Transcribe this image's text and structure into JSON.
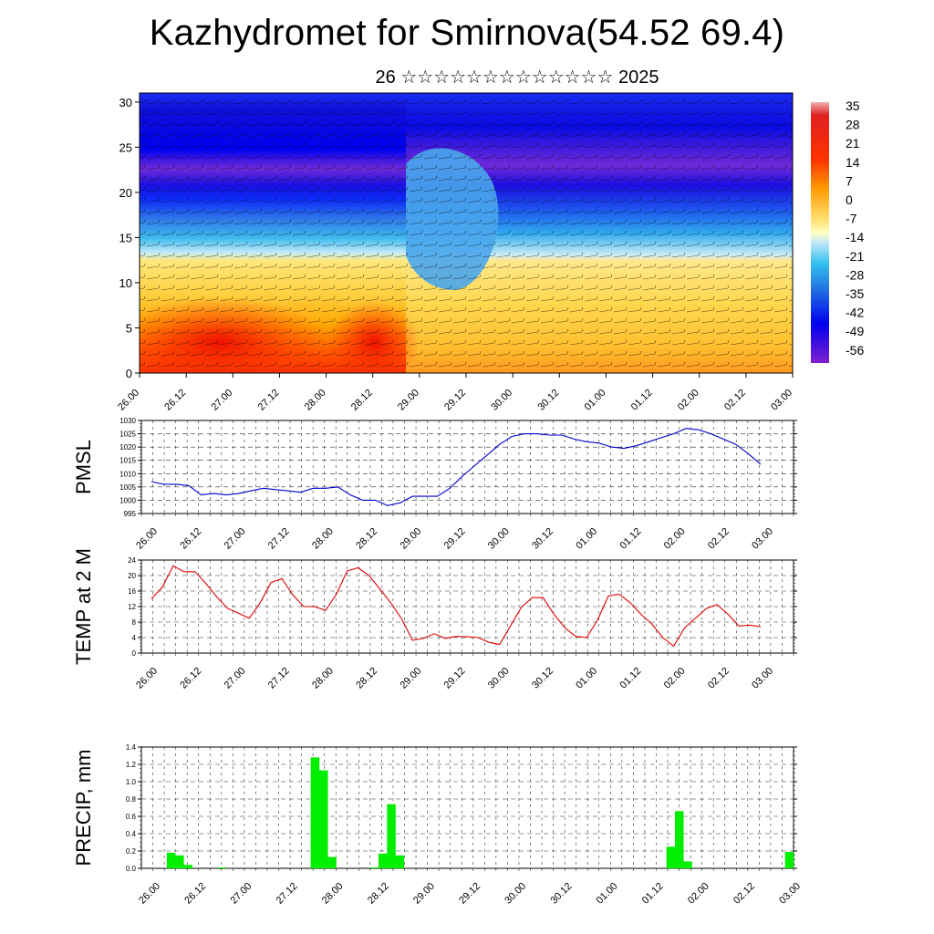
{
  "title": "Kazhydromet for Smirnova(54.52 69.4)",
  "subtitle": "26 ☆☆☆☆☆☆☆☆☆☆☆☆☆ 2025",
  "time_labels": [
    "26.00",
    "26.12",
    "27.00",
    "27.12",
    "28.00",
    "28.12",
    "29.00",
    "29.12",
    "30.00",
    "30.12",
    "01.00",
    "01.12",
    "02.00",
    "02.12",
    "03.00"
  ],
  "colors": {
    "pmsl_line": "#0000cc",
    "temp_line": "#e00000",
    "precip_bar": "#00ee00",
    "grid": "#333333"
  },
  "chart_data": [
    {
      "type": "heatmap",
      "title": "",
      "xlabel": "",
      "ylabel": "",
      "y_ticks": [
        0,
        5,
        10,
        15,
        20,
        25,
        30
      ],
      "ylim": [
        0,
        31
      ],
      "x_ticks": [
        "26.00",
        "26.12",
        "27.00",
        "27.12",
        "28.00",
        "28.12",
        "29.00",
        "29.12",
        "30.00",
        "30.12",
        "01.00",
        "01.12",
        "02.00",
        "02.12",
        "03.00"
      ],
      "colorbar": {
        "labels": [
          "35",
          "28",
          "21",
          "14",
          "7",
          "0",
          "-7",
          "-14",
          "-21",
          "-28",
          "-35",
          "-42",
          "-49",
          "-56"
        ],
        "range": [
          -60,
          39
        ]
      },
      "overlay": "wind barbs and white temperature contours"
    },
    {
      "type": "line",
      "ylabel": "PMSL",
      "y_ticks": [
        995,
        1000,
        1005,
        1010,
        1015,
        1020,
        1025,
        1030
      ],
      "ylim": [
        995,
        1030
      ],
      "x_ticks": [
        "26.00",
        "26.12",
        "27.00",
        "27.12",
        "28.00",
        "28.12",
        "29.00",
        "29.12",
        "30.00",
        "30.12",
        "01.00",
        "01.12",
        "02.00",
        "02.12",
        "03.00"
      ],
      "series": [
        {
          "values": [
            1007,
            1006,
            1006,
            1005.5,
            1002,
            1002.5,
            1002,
            1002.5,
            1003.5,
            1004.5,
            1004,
            1003.5,
            1003,
            1004.5,
            1004.5,
            1005,
            1002,
            1000,
            1000,
            998,
            999,
            1001.5,
            1001.5,
            1001.5,
            1004.5,
            1009,
            1013,
            1017,
            1021,
            1024,
            1025,
            1025,
            1024.5,
            1024.5,
            1023,
            1022,
            1021.5,
            1020,
            1019.5,
            1020.5,
            1022,
            1023.5,
            1025,
            1027,
            1026.5,
            1025,
            1023,
            1021,
            1017.5,
            1013.5
          ]
        }
      ]
    },
    {
      "type": "line",
      "ylabel": "TEMP at 2 M",
      "y_ticks": [
        0,
        4,
        8,
        12,
        16,
        20,
        24
      ],
      "ylim": [
        0,
        24
      ],
      "x_ticks": [
        "26.00",
        "26.12",
        "27.00",
        "27.12",
        "28.00",
        "28.12",
        "29.00",
        "29.12",
        "30.00",
        "30.12",
        "01.00",
        "01.12",
        "02.00",
        "02.12",
        "03.00"
      ],
      "series": [
        {
          "values": [
            14,
            17,
            22.5,
            21,
            21,
            18,
            14.5,
            11.5,
            10.3,
            9,
            13,
            18.2,
            19.2,
            15,
            12,
            12,
            11,
            15.2,
            21.2,
            22,
            20,
            16.5,
            13,
            8.8,
            3.3,
            3.8,
            5,
            3.8,
            4.3,
            4.2,
            4,
            2.8,
            2.2,
            7,
            11.8,
            14.3,
            14.3,
            10,
            6.5,
            4.3,
            4,
            8.5,
            14.7,
            15.2,
            13,
            10,
            7.5,
            4,
            1.8,
            6.5,
            9,
            11.5,
            12.5,
            10,
            7,
            7.2,
            6.8
          ]
        }
      ]
    },
    {
      "type": "bar",
      "ylabel": "PRECIP, mm",
      "y_ticks": [
        0.0,
        0.2,
        0.4,
        0.6,
        0.8,
        1.0,
        1.2,
        1.4
      ],
      "ylim": [
        0,
        1.4
      ],
      "x_ticks": [
        "26.00",
        "26.12",
        "27.00",
        "27.12",
        "28.00",
        "28.12",
        "29.00",
        "29.12",
        "30.00",
        "30.12",
        "01.00",
        "01.12",
        "02.00",
        "02.12",
        "03.00"
      ],
      "values": [
        0,
        0,
        0,
        0.18,
        0.15,
        0.04,
        0,
        0,
        0,
        0.01,
        0,
        0,
        0,
        0,
        0,
        0,
        0,
        0,
        0,
        0,
        1.28,
        1.13,
        0.13,
        0,
        0,
        0,
        0,
        0.01,
        0.17,
        0.74,
        0.15,
        0,
        0,
        0,
        0,
        0,
        0,
        0,
        0,
        0,
        0,
        0,
        0,
        0,
        0,
        0,
        0,
        0,
        0,
        0,
        0,
        0,
        0,
        0,
        0,
        0,
        0,
        0,
        0,
        0,
        0,
        0,
        0.25,
        0.66,
        0.08,
        0,
        0,
        0,
        0,
        0,
        0,
        0,
        0,
        0,
        0,
        0,
        0.19
      ]
    }
  ]
}
